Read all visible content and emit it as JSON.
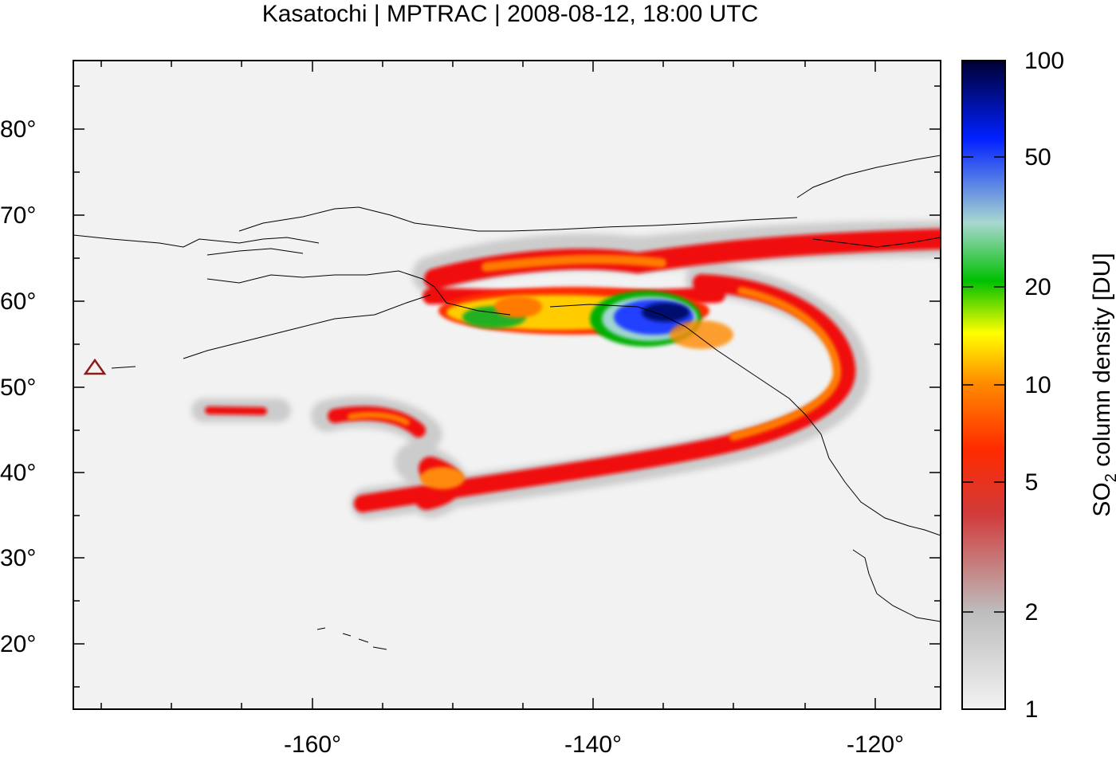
{
  "title": "Kasatochi | MPTRAC | 2008-08-12, 18:00 UTC",
  "map": {
    "x_ticks": [
      "-160°",
      "-140°",
      "-120°"
    ],
    "y_ticks": [
      "20°",
      "30°",
      "40°",
      "50°",
      "60°",
      "70°",
      "80°"
    ],
    "background_color": "#f2f2f2",
    "coastline_color": "#000000",
    "marker": {
      "shape": "triangle",
      "color": "#8b1a1a"
    }
  },
  "colorbar": {
    "label_main": "SO",
    "label_sub": "2",
    "label_rest": " column density [DU]",
    "ticks": [
      "100",
      "50",
      "20",
      "10",
      "5",
      "2",
      "1"
    ],
    "scale": "log",
    "colors": [
      "#f0f0f0",
      "#999999",
      "#ff0000",
      "#ff7f00",
      "#ffff00",
      "#00bb00",
      "#aadddd",
      "#0000ff",
      "#000033"
    ]
  }
}
